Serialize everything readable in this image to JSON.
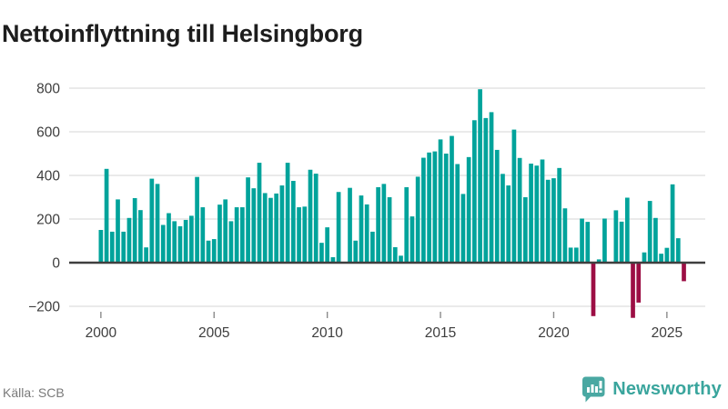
{
  "header": {
    "title": "Nettoinflyttning till Helsingborg"
  },
  "footer": {
    "source": "Källa: SCB",
    "brand_name": "Newsworthy",
    "brand_icon": "newsworthy-speech-bubble-chart-icon",
    "brand_color": "#3aa59d"
  },
  "chart_data": {
    "type": "bar",
    "title": "Nettoinflyttning till Helsingborg",
    "xlabel": "",
    "ylabel": "",
    "x_unit": "quarter",
    "x_start": "2000-Q1",
    "x_tick_labels": [
      "2000",
      "2005",
      "2010",
      "2015",
      "2020",
      "2025"
    ],
    "y_ticks": [
      800,
      600,
      400,
      200,
      0,
      -200
    ],
    "ylim": [
      -270,
      840
    ],
    "grid": true,
    "legend": false,
    "colors": {
      "positive": "#00a39b",
      "negative": "#9c0e44"
    },
    "values": [
      150,
      430,
      142,
      290,
      142,
      205,
      296,
      241,
      70,
      385,
      361,
      173,
      227,
      190,
      167,
      196,
      215,
      393,
      254,
      101,
      108,
      266,
      290,
      190,
      254,
      254,
      391,
      341,
      458,
      319,
      297,
      317,
      354,
      458,
      375,
      254,
      257,
      426,
      408,
      91,
      162,
      25,
      324,
      0,
      343,
      101,
      308,
      267,
      142,
      346,
      361,
      300,
      71,
      32,
      346,
      212,
      394,
      481,
      505,
      510,
      565,
      500,
      581,
      452,
      315,
      484,
      653,
      795,
      663,
      690,
      517,
      407,
      354,
      610,
      480,
      300,
      454,
      445,
      473,
      380,
      387,
      434,
      249,
      69,
      69,
      202,
      187,
      -245,
      15,
      202,
      0,
      240,
      188,
      298,
      -253,
      -183,
      47,
      283,
      205,
      41,
      68,
      359,
      112,
      -85
    ]
  }
}
